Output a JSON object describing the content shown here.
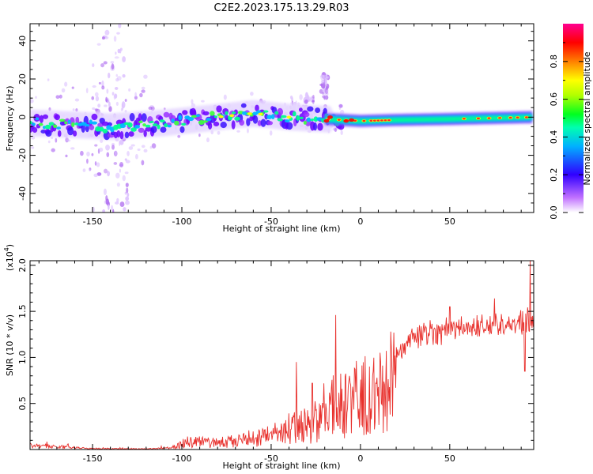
{
  "title": "C2E2.2023.175.13.29.R03",
  "chart_data": [
    {
      "type": "heatmap",
      "xlabel": "Height of straight line (km)",
      "ylabel": "Frequency (Hz)",
      "xlim": [
        -185,
        97
      ],
      "ylim": [
        -50,
        49
      ],
      "x_ticks": [
        -150,
        -100,
        -50,
        0,
        50
      ],
      "y_ticks": [
        -40,
        -20,
        0,
        20,
        40
      ],
      "colorbar": {
        "label": "Normalized spectral amplitude",
        "range": [
          0,
          1
        ],
        "ticks": [
          0.0,
          0.2,
          0.4,
          0.6,
          0.8
        ],
        "colors": [
          "#ffffff",
          "#a000ff",
          "#2000ff",
          "#00b0ff",
          "#00ffb0",
          "#00ff00",
          "#c0ff00",
          "#ffff00",
          "#ff8000",
          "#ff0000",
          "#ff0080"
        ]
      },
      "ridge": [
        {
          "x": -185,
          "y": -3
        },
        {
          "x": -160,
          "y": -4
        },
        {
          "x": -140,
          "y": -5
        },
        {
          "x": -110,
          "y": -3
        },
        {
          "x": -90,
          "y": -1
        },
        {
          "x": -70,
          "y": 1
        },
        {
          "x": -60,
          "y": 2
        },
        {
          "x": -40,
          "y": 0
        },
        {
          "x": -20,
          "y": -1
        },
        {
          "x": 0,
          "y": -2
        },
        {
          "x": 20,
          "y": -1.5
        },
        {
          "x": 50,
          "y": -1
        },
        {
          "x": 97,
          "y": 0
        }
      ],
      "plume": [
        {
          "x_range": [
            -150,
            -130
          ],
          "y_range": [
            -50,
            49
          ],
          "amplitude": 0.15
        },
        {
          "x_range": [
            -40,
            -25
          ],
          "y_range": [
            0,
            12
          ],
          "amplitude": 0.3
        },
        {
          "x_range": [
            -22,
            -18
          ],
          "y_range": [
            10,
            22
          ],
          "amplitude": 0.2
        }
      ]
    },
    {
      "type": "line",
      "xlabel": "Height of straight line (km)",
      "ylabel": "SNR (10 * v/v)",
      "y_multiplier_label": "(x10",
      "y_multiplier_exp": "4",
      "xlim": [
        -185,
        97
      ],
      "ylim": [
        0,
        20500
      ],
      "x_ticks": [
        -150,
        -100,
        -50,
        0,
        50
      ],
      "y_ticks": [
        5000,
        10000,
        15000,
        20000
      ],
      "y_tick_labels": [
        "0.5",
        "1.0",
        "1.5",
        "2.0"
      ],
      "color": "#e8302c",
      "envelope": [
        {
          "x": -185,
          "y": 700
        },
        {
          "x": -165,
          "y": 400
        },
        {
          "x": -150,
          "y": 150
        },
        {
          "x": -120,
          "y": 100
        },
        {
          "x": -105,
          "y": 300
        },
        {
          "x": -95,
          "y": 1300
        },
        {
          "x": -85,
          "y": 900
        },
        {
          "x": -75,
          "y": 1100
        },
        {
          "x": -65,
          "y": 1500
        },
        {
          "x": -55,
          "y": 1700
        },
        {
          "x": -45,
          "y": 2600
        },
        {
          "x": -35,
          "y": 3300
        },
        {
          "x": -25,
          "y": 4000
        },
        {
          "x": -20,
          "y": 5500
        },
        {
          "x": -15,
          "y": 6000
        },
        {
          "x": -10,
          "y": 6200
        },
        {
          "x": -5,
          "y": 7000
        },
        {
          "x": 0,
          "y": 7800
        },
        {
          "x": 10,
          "y": 8200
        },
        {
          "x": 20,
          "y": 10000
        },
        {
          "x": 30,
          "y": 12200
        },
        {
          "x": 40,
          "y": 12800
        },
        {
          "x": 55,
          "y": 13200
        },
        {
          "x": 70,
          "y": 13500
        },
        {
          "x": 85,
          "y": 13600
        },
        {
          "x": 95,
          "y": 14000
        }
      ],
      "spikes": [
        {
          "x": -14,
          "y": 14600
        },
        {
          "x": -36,
          "y": 9500
        },
        {
          "x": -27,
          "y": 7200
        },
        {
          "x": 17,
          "y": 12800
        },
        {
          "x": 50,
          "y": 15500
        },
        {
          "x": 75,
          "y": 16400
        },
        {
          "x": 95,
          "y": 20500
        },
        {
          "x": 92,
          "y": 8500
        }
      ]
    }
  ]
}
